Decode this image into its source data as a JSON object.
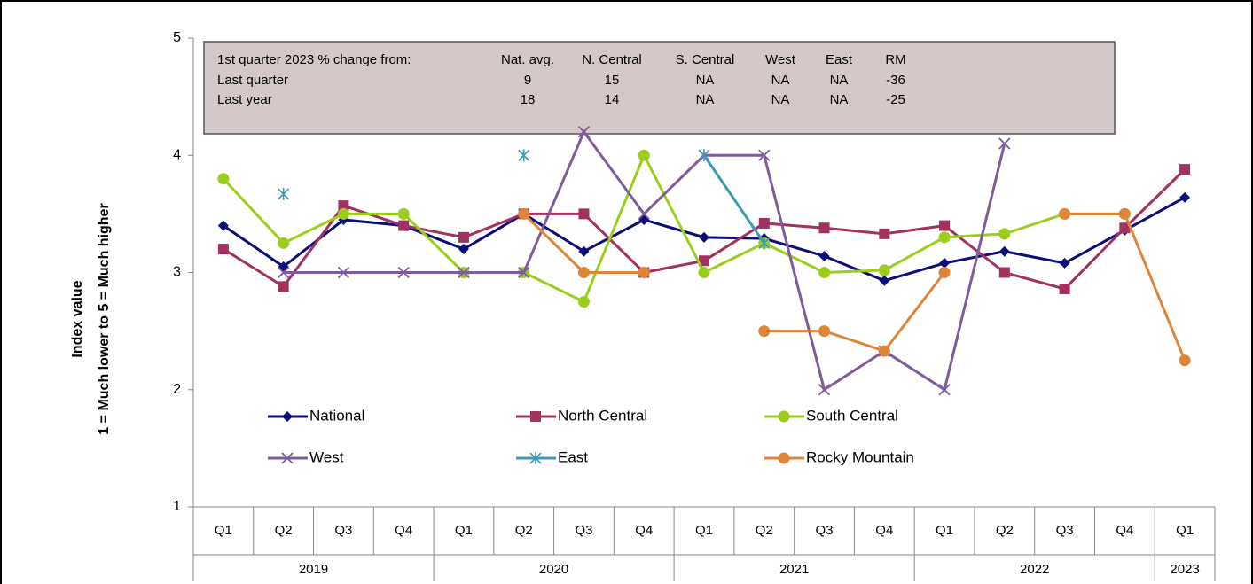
{
  "chart_data": {
    "type": "line",
    "y_label": [
      "Index value",
      "1 = Much lower  to  5 = Much higher"
    ],
    "categories": [
      "Q1",
      "Q2",
      "Q3",
      "Q4",
      "Q1",
      "Q2",
      "Q3",
      "Q4",
      "Q1",
      "Q2",
      "Q3",
      "Q4",
      "Q1",
      "Q2",
      "Q3",
      "Q4",
      "Q1"
    ],
    "x_groups": [
      {
        "label": "2019",
        "span": 4
      },
      {
        "label": "2020",
        "span": 4
      },
      {
        "label": "2021",
        "span": 4
      },
      {
        "label": "2022",
        "span": 4
      },
      {
        "label": "2023",
        "span": 1
      }
    ],
    "ylim": [
      1,
      5
    ],
    "yticks": [
      1,
      2,
      3,
      4,
      5
    ],
    "grid": false,
    "series": [
      {
        "name": "National",
        "color": "#0d0d78",
        "marker": "diamond",
        "values": [
          3.4,
          3.05,
          3.45,
          3.4,
          3.2,
          3.5,
          3.18,
          3.45,
          3.3,
          3.29,
          3.14,
          2.93,
          3.08,
          3.18,
          3.08,
          3.36,
          3.64
        ]
      },
      {
        "name": "North Central",
        "color": "#a3315f",
        "marker": "square",
        "values": [
          3.2,
          2.88,
          3.57,
          3.4,
          3.3,
          3.5,
          3.5,
          3.0,
          3.1,
          3.42,
          3.38,
          3.33,
          3.4,
          3.0,
          2.86,
          3.38,
          3.88
        ]
      },
      {
        "name": "South Central",
        "color": "#9acd1c",
        "marker": "circle",
        "values": [
          3.8,
          3.25,
          3.5,
          3.5,
          3.0,
          3.0,
          2.75,
          4.0,
          3.0,
          3.25,
          3.0,
          3.02,
          3.3,
          3.33,
          3.5,
          3.5,
          null
        ]
      },
      {
        "name": "West",
        "color": "#7f5b9e",
        "marker": "x",
        "values": [
          null,
          3.0,
          3.0,
          3.0,
          3.0,
          3.0,
          4.2,
          3.5,
          4.0,
          4.0,
          2.0,
          2.33,
          2.0,
          4.1,
          null,
          null,
          null
        ]
      },
      {
        "name": "East",
        "color": "#3e9ab3",
        "marker": "asterisk",
        "values": [
          null,
          3.67,
          null,
          null,
          null,
          4.0,
          null,
          null,
          4.0,
          3.25,
          null,
          null,
          null,
          null,
          null,
          null,
          null
        ]
      },
      {
        "name": "Rocky Mountain",
        "color": "#e0843a",
        "marker": "circle",
        "values": [
          null,
          null,
          null,
          null,
          null,
          3.5,
          3.0,
          3.0,
          null,
          2.5,
          2.5,
          2.33,
          3.0,
          null,
          3.5,
          3.5,
          2.25
        ]
      }
    ],
    "table": {
      "header": [
        "1st quarter 2023 % change from:",
        "Nat. avg.",
        "N. Central",
        "S. Central",
        "West",
        "East",
        "RM"
      ],
      "rows": [
        [
          "Last quarter",
          9,
          15,
          "NA",
          "NA",
          "NA",
          -36
        ],
        [
          "Last year",
          18,
          14,
          "NA",
          "NA",
          "NA",
          -25
        ]
      ]
    }
  }
}
